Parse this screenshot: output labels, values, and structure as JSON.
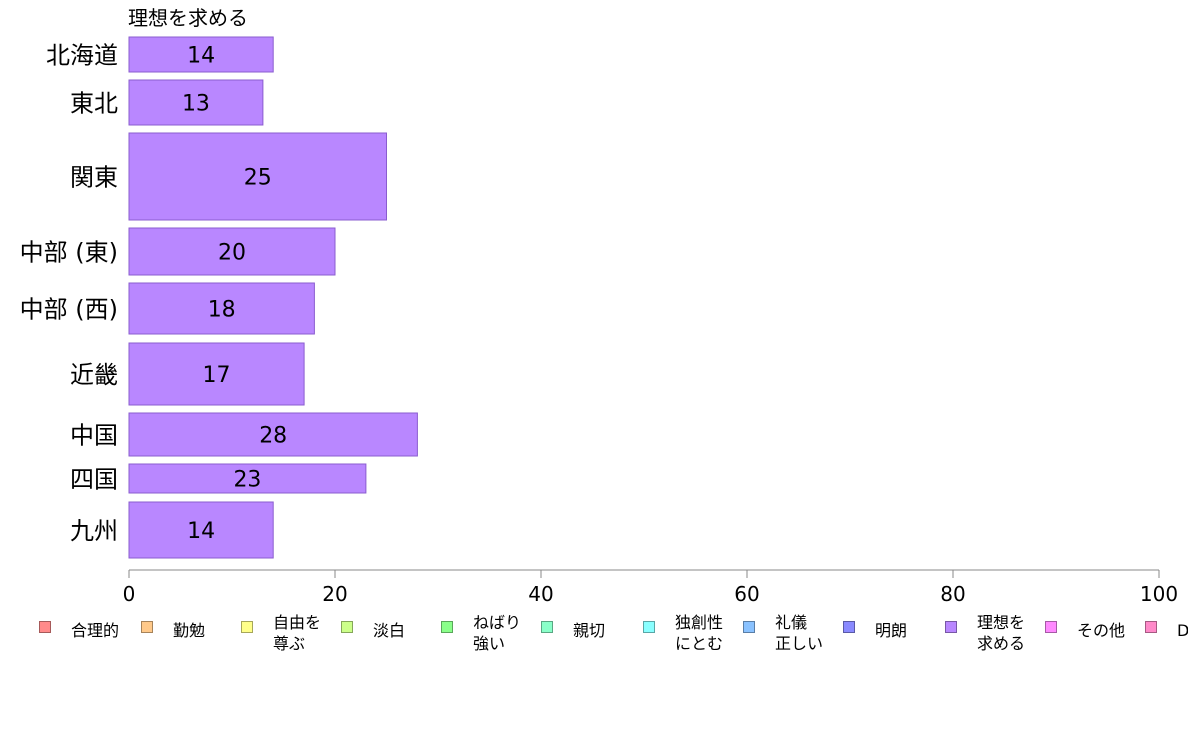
{
  "chart_data": {
    "type": "bar",
    "orientation": "horizontal",
    "series_title": "理想を求める",
    "categories": [
      "北海道",
      "東北",
      "関東",
      "中部 (東)",
      "中部 (西)",
      "近畿",
      "中国",
      "四国",
      "九州"
    ],
    "values": [
      14,
      13,
      25,
      20,
      18,
      17,
      28,
      23,
      14
    ],
    "xlim": [
      0,
      100
    ],
    "xticks": [
      "0",
      "20",
      "40",
      "60",
      "80",
      "100"
    ],
    "grid": false,
    "bar_color": "#b987ff",
    "legend_position": "bottom",
    "legend": [
      {
        "label": "合理的",
        "color": "#ff8a8a"
      },
      {
        "label": "勤勉",
        "color": "#ffc98a"
      },
      {
        "label": "自由を\n尊ぶ",
        "color": "#ffff8a"
      },
      {
        "label": "淡白",
        "color": "#ccff8a"
      },
      {
        "label": "ねばり\n強い",
        "color": "#8aff8a"
      },
      {
        "label": "親切",
        "color": "#8affc9"
      },
      {
        "label": "独創性\nにとむ",
        "color": "#8affff"
      },
      {
        "label": "礼儀\n正しい",
        "color": "#8ac2ff"
      },
      {
        "label": "明朗",
        "color": "#8a8aff"
      },
      {
        "label": "理想を\n求める",
        "color": "#b987ff"
      },
      {
        "label": "その他",
        "color": "#ff8aff"
      },
      {
        "label": "D",
        "color": "#ff8ac9"
      }
    ]
  }
}
